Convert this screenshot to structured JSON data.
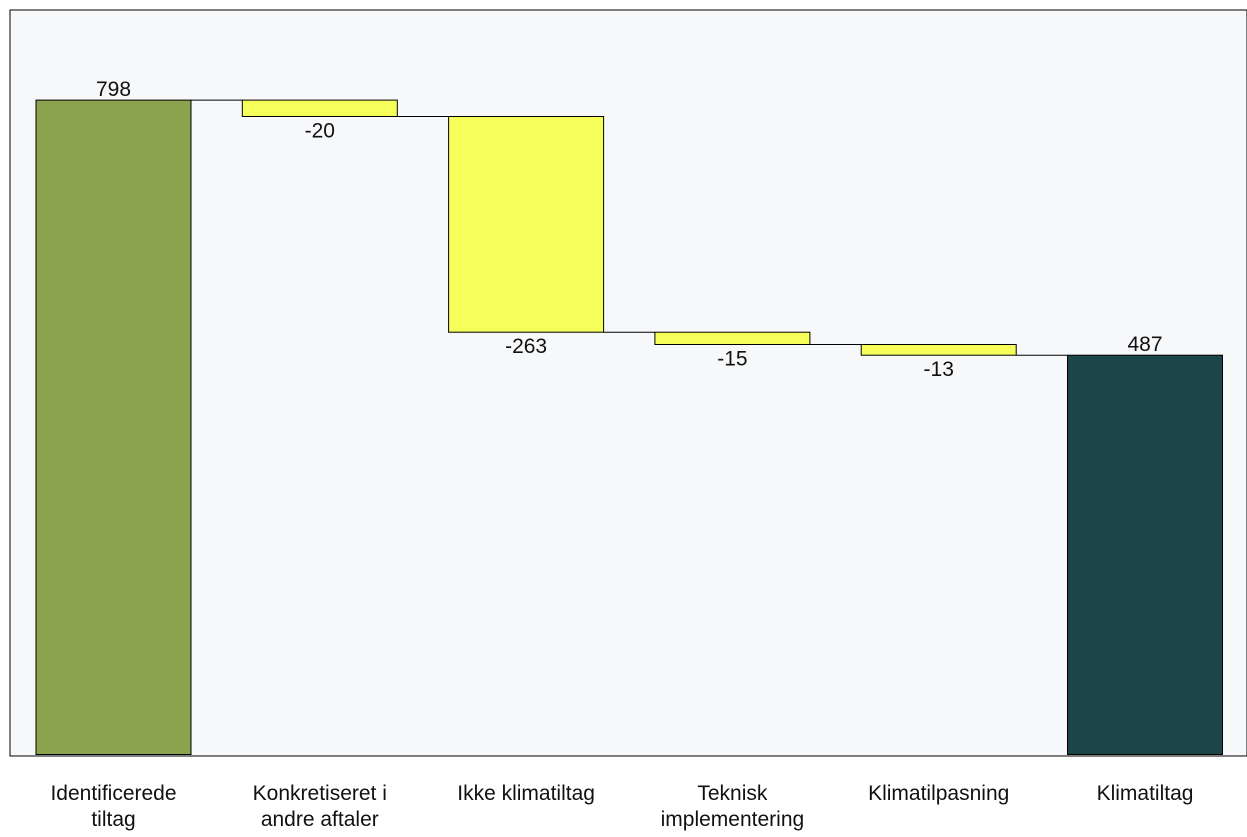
{
  "chart_data": {
    "type": "waterfall",
    "title": "",
    "xlabel": "",
    "ylabel": "",
    "ylim": [
      0,
      1000
    ],
    "grid": false,
    "legend": "none",
    "categories": [
      "Identificerede tiltag",
      "Konkretiseret i andre aftaler",
      "Ikke klimatiltag",
      "Teknisk implementering",
      "Klimatilpasning",
      "Klimatiltag"
    ],
    "values": [
      798,
      -20,
      -263,
      -15,
      -13,
      487
    ],
    "kinds": [
      "total",
      "delta",
      "delta",
      "delta",
      "delta",
      "total"
    ],
    "data_labels": [
      "798",
      "-20",
      "-263",
      "-15",
      "-13",
      "487"
    ],
    "colors": {
      "start_total": "#8ba34e",
      "delta": "#f6ff5a",
      "end_total": "#1b4546",
      "plot_background": "#f7f8fa",
      "axis": "#000000",
      "connector": "#000000"
    }
  }
}
